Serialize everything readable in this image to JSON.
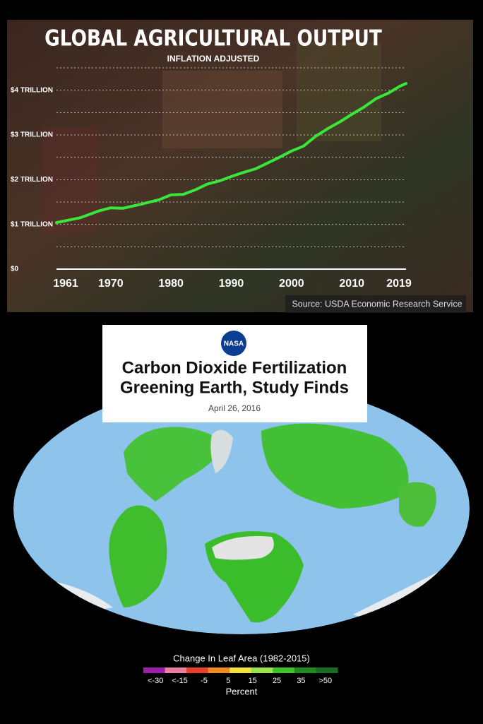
{
  "chart_data": {
    "type": "line",
    "title": "GLOBAL AGRICULTURAL OUTPUT",
    "subtitle": "INFLATION ADJUSTED",
    "source": "Source: USDA Economic Research Service",
    "x": [
      1961,
      1965,
      1968,
      1970,
      1972,
      1975,
      1978,
      1980,
      1982,
      1984,
      1986,
      1988,
      1990,
      1992,
      1994,
      1996,
      1998,
      2000,
      2002,
      2004,
      2006,
      2008,
      2010,
      2012,
      2014,
      2016,
      2018,
      2019
    ],
    "series": [
      {
        "color": "#39e639",
        "values": [
          1.04,
          1.15,
          1.3,
          1.37,
          1.36,
          1.45,
          1.55,
          1.66,
          1.67,
          1.77,
          1.9,
          1.97,
          2.07,
          2.16,
          2.24,
          2.37,
          2.5,
          2.64,
          2.75,
          2.97,
          3.14,
          3.29,
          3.46,
          3.62,
          3.81,
          3.93,
          4.09,
          4.15
        ]
      }
    ],
    "xlim": [
      1961,
      2019
    ],
    "xticks": [
      1961,
      1970,
      1980,
      1990,
      2000,
      2010,
      2019
    ],
    "ylim": [
      0,
      4.5
    ],
    "yticks": [
      {
        "value": 0,
        "label": "$0"
      },
      {
        "value": 1,
        "label": "$1 TRILLION"
      },
      {
        "value": 2,
        "label": "$2 TRILLION"
      },
      {
        "value": 3,
        "label": "$3 TRILLION"
      },
      {
        "value": 4,
        "label": "$4 TRILLION"
      }
    ],
    "minor_yticks": [
      0.5,
      1.5,
      2.5,
      3.5,
      4.5
    ],
    "grid": true
  },
  "article": {
    "logo": "NASA",
    "title_lines": [
      "Carbon Dioxide Fertilization",
      "Greening Earth, Study Finds"
    ],
    "date": "April 26, 2016"
  },
  "map_legend": {
    "title": "Change In Leaf Area (1982-2015)",
    "labels": [
      "<-30",
      "<-15",
      "-5",
      "5",
      "15",
      "25",
      "35",
      ">50"
    ],
    "colors": [
      "#9b1fa8",
      "#e87fa0",
      "#e8402a",
      "#f08a1c",
      "#f2e23a",
      "#9be34a",
      "#3fc22a",
      "#1f8a1f",
      "#1c6b24"
    ],
    "unit": "Percent"
  }
}
